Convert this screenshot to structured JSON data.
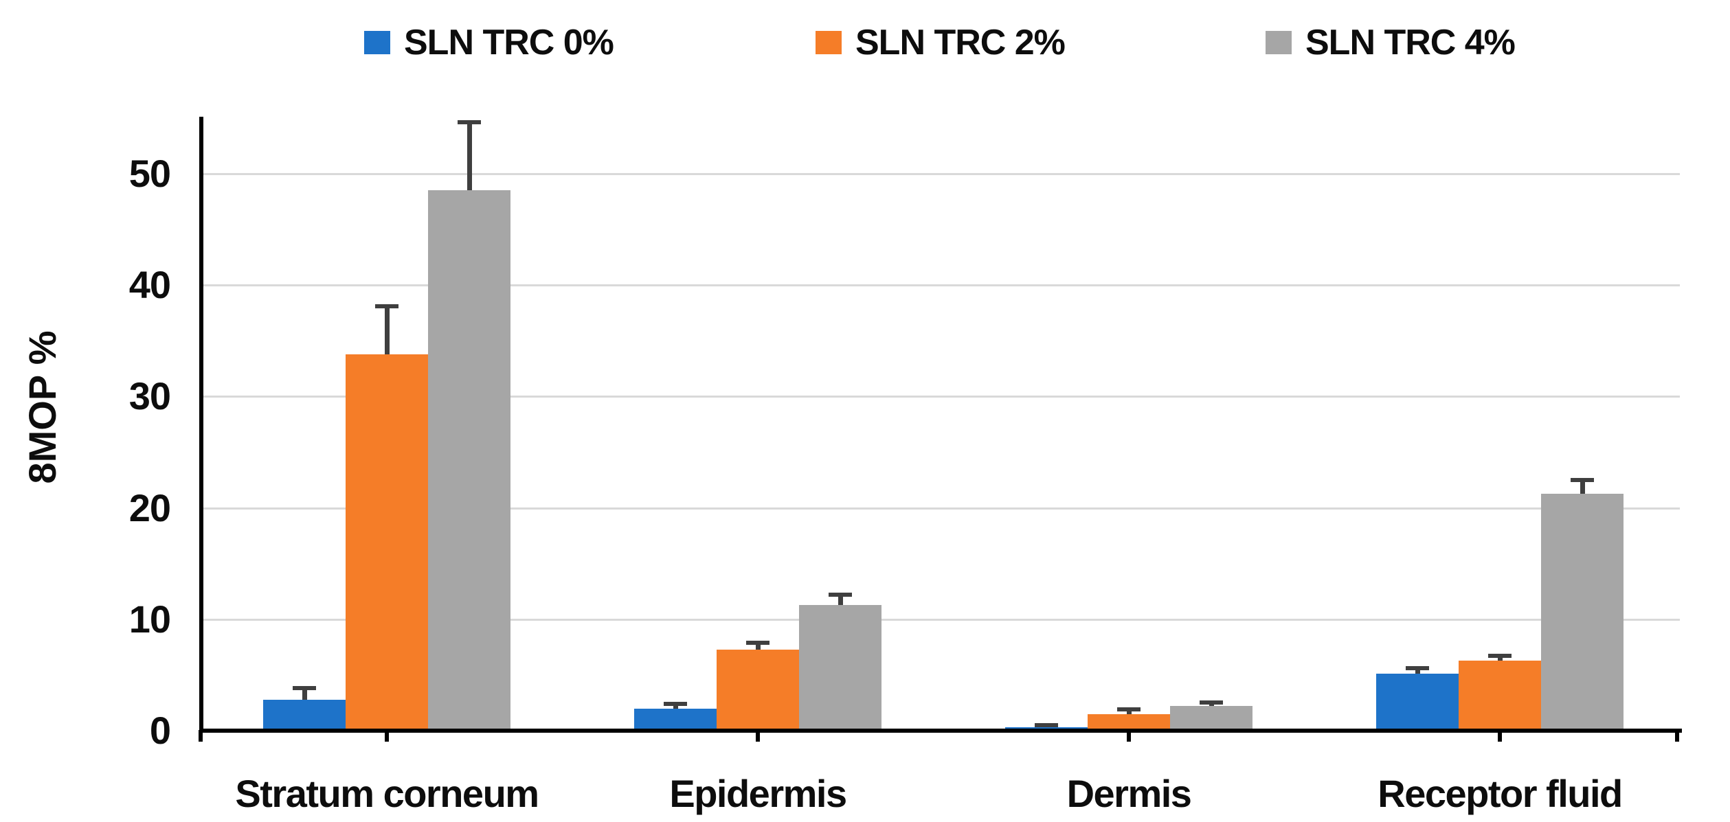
{
  "chart_data": {
    "type": "bar",
    "title": "",
    "categories": [
      "Stratum corneum",
      "Epidermis",
      "Dermis",
      "Receptor fluid"
    ],
    "series": [
      {
        "name": "SLN TRC 0%",
        "color": "#1E73C9",
        "values": [
          2.8,
          2.0,
          0.3,
          5.1
        ],
        "errors": [
          1.0,
          0.4,
          0.2,
          0.5
        ]
      },
      {
        "name": "SLN TRC 2%",
        "color": "#F57D28",
        "values": [
          33.8,
          7.3,
          1.5,
          6.3
        ],
        "errors": [
          4.3,
          0.6,
          0.4,
          0.4
        ]
      },
      {
        "name": "SLN TRC 4%",
        "color": "#A6A6A6",
        "values": [
          48.5,
          11.3,
          2.2,
          21.3
        ],
        "errors": [
          6.1,
          0.9,
          0.35,
          1.2
        ]
      }
    ],
    "xlabel": "",
    "ylabel": "8MOP %",
    "y_ticks": [
      0,
      10,
      20,
      30,
      40,
      50
    ],
    "ylim": [
      0,
      55
    ],
    "grid": true,
    "legend_position": "top",
    "error_bars": "upper",
    "colors": {
      "gridline": "#D9D9D9",
      "axis": "#000000",
      "error_bar": "#3F3F3F",
      "text": "#0d0d0d",
      "background": "#FFFFFF"
    }
  }
}
